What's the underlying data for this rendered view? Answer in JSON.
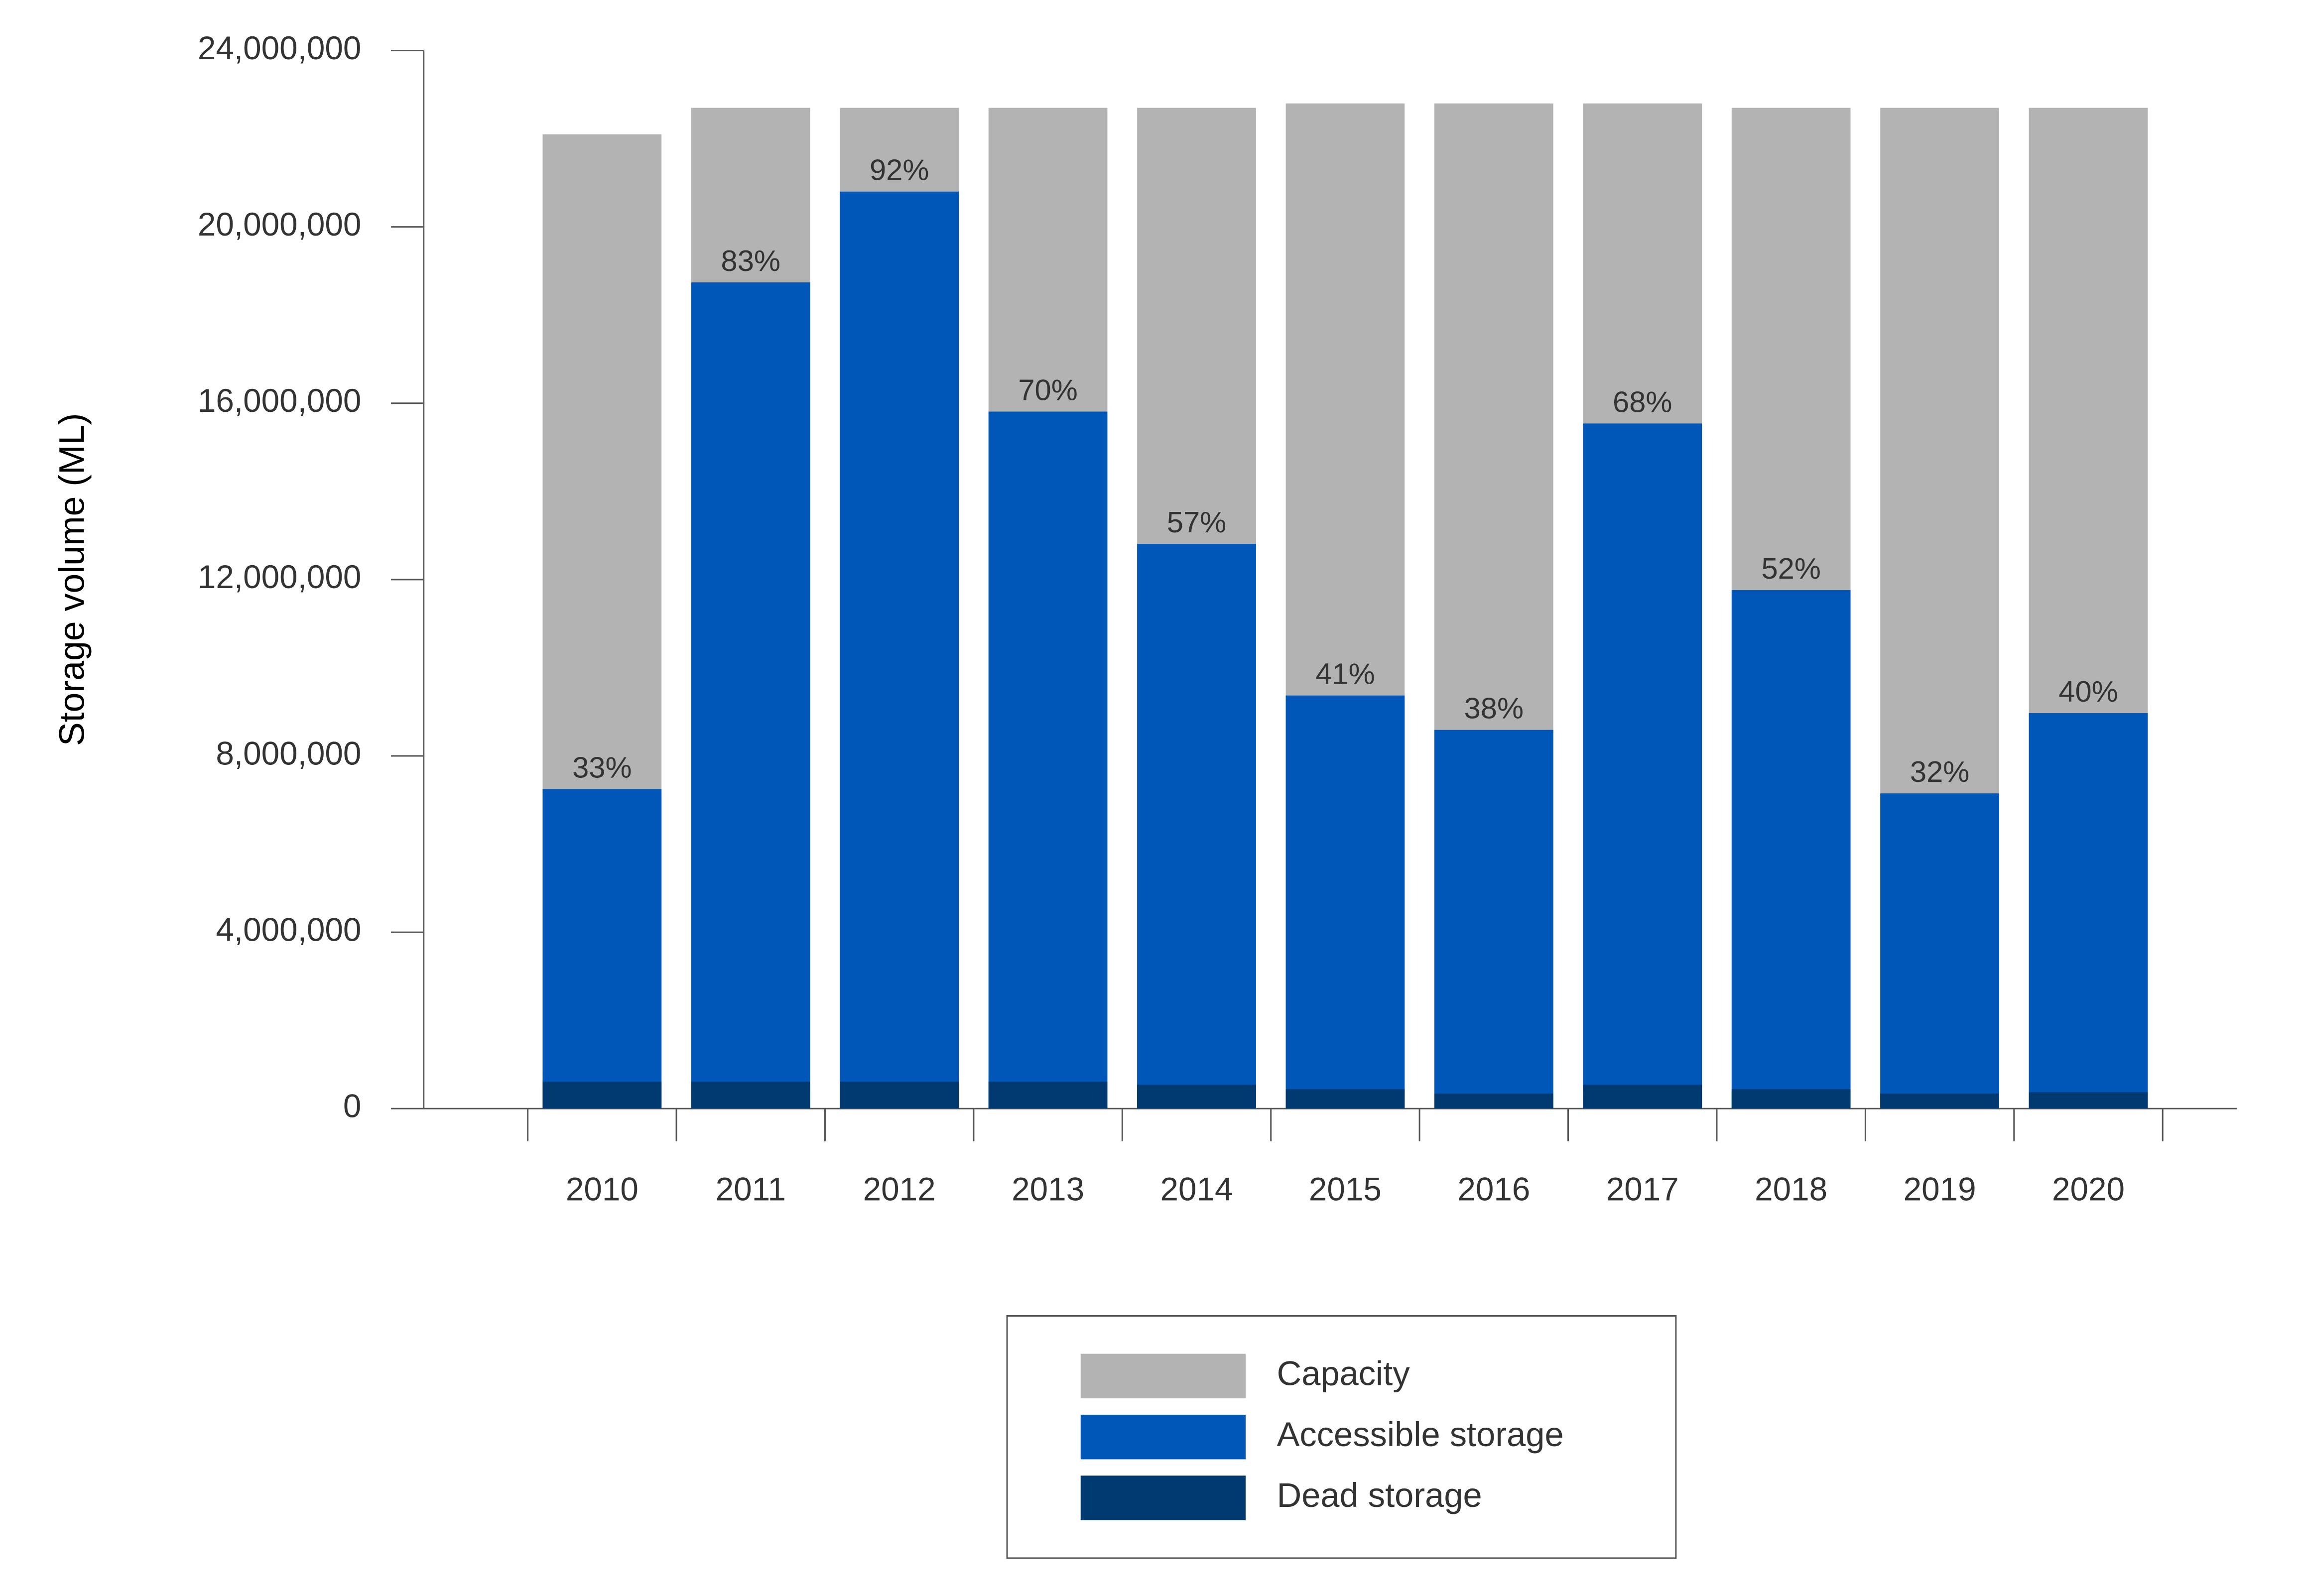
{
  "chart_data": {
    "type": "bar",
    "barmode": "overlay",
    "y_label": "Storage volume (ML)",
    "categories": [
      "2010",
      "2011",
      "2012",
      "2013",
      "2014",
      "2015",
      "2016",
      "2017",
      "2018",
      "2019",
      "2020"
    ],
    "series": [
      {
        "name": "Capacity",
        "color": "#b3b3b3",
        "values": [
          22100000,
          22700000,
          22700000,
          22700000,
          22700000,
          22800000,
          22800000,
          22800000,
          22700000,
          22700000,
          22700000
        ]
      },
      {
        "name": "Accessible storage",
        "color": "#0057b8",
        "values": [
          7250000,
          18740000,
          20800000,
          15810000,
          12810000,
          9370000,
          8590000,
          15540000,
          11760000,
          7150000,
          8970000
        ]
      },
      {
        "name": "Dead storage",
        "color": "#003a70",
        "values": [
          610000,
          610000,
          610000,
          610000,
          540000,
          440000,
          340000,
          540000,
          440000,
          340000,
          370000
        ]
      }
    ],
    "percent_full": {
      "values": [
        33,
        83,
        92,
        70,
        57,
        41,
        38,
        68,
        52,
        32,
        40
      ],
      "value_labels": [
        "33%",
        "83%",
        "92%",
        "70%",
        "57%",
        "41%",
        "38%",
        "68%",
        "52%",
        "32%",
        "40%"
      ]
    },
    "ylim": [
      0,
      24000000
    ],
    "yticks": [
      0,
      {
        "value": 4000000,
        "label": "4,000,000"
      },
      {
        "value": 8000000,
        "label": "8,000,000"
      },
      {
        "value": 12000000,
        "label": "12,000,000"
      },
      {
        "value": 16000000,
        "label": "16,000,000"
      },
      {
        "value": 20000000,
        "label": "20,000,000"
      },
      {
        "value": 24000000,
        "label": "24,000,000"
      }
    ],
    "legend": "bottom"
  }
}
